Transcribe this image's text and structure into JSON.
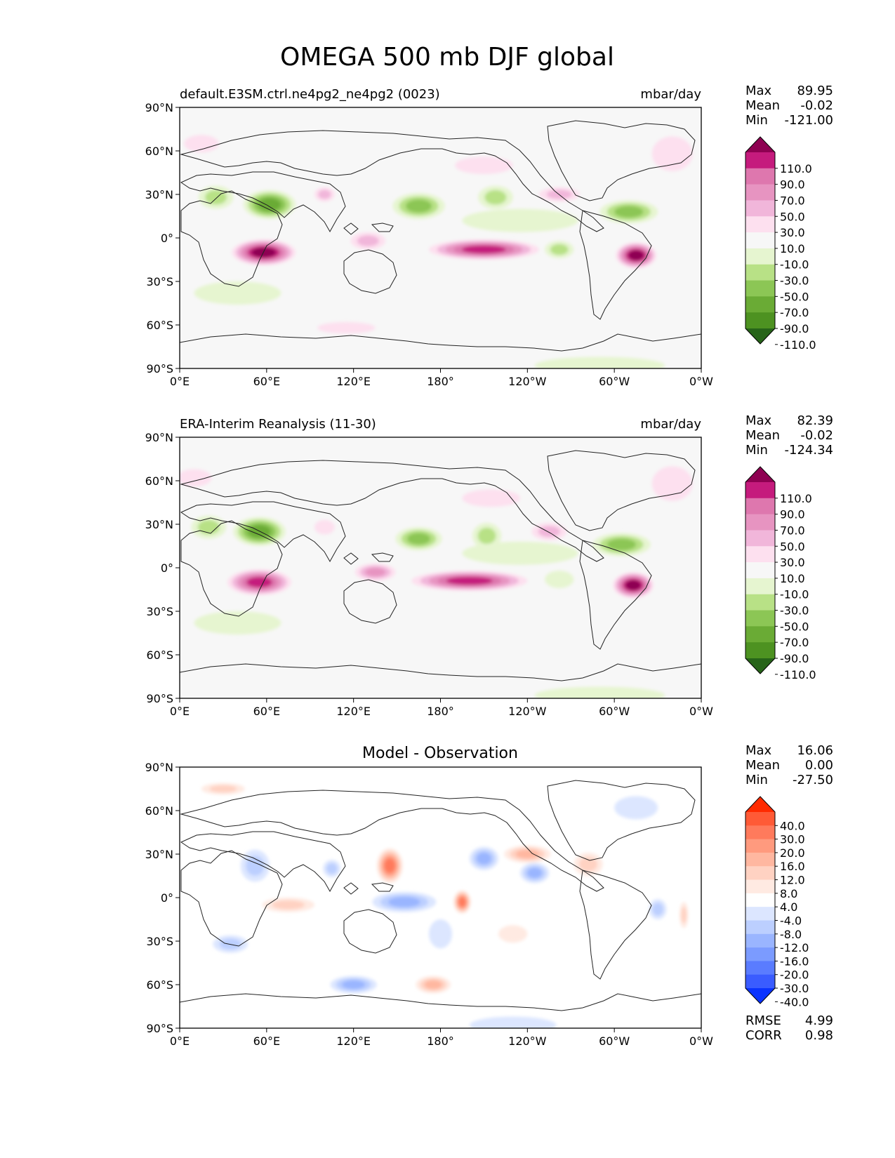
{
  "title": "OMEGA 500 mb DJF global",
  "lon_ticks": [
    "0°E",
    "60°E",
    "120°E",
    "180°",
    "120°W",
    "60°W",
    "0°W"
  ],
  "lat_ticks": [
    "90°N",
    "60°N",
    "30°N",
    "0°",
    "30°S",
    "60°S",
    "90°S"
  ],
  "stat_labels": {
    "max": "Max",
    "mean": "Mean",
    "min": "Min",
    "rmse": "RMSE",
    "corr": "CORR"
  },
  "colors": {
    "ocean_main": "#f7f7f7",
    "ocean_diff": "#ffffff",
    "coast": "#222222"
  },
  "panels": [
    {
      "left_title": "default.E3SM.ctrl.ne4pg2_ne4pg2 (0023)",
      "center_title": "",
      "units": "mbar/day",
      "stats": {
        "max": "89.95",
        "mean": "-0.02",
        "min": "-121.00"
      },
      "colorbar": {
        "labels": [
          "110.0",
          "90.0",
          "70.0",
          "50.0",
          "30.0",
          "10.0",
          "-10.0",
          "-30.0",
          "-50.0",
          "-70.0",
          "-90.0",
          "-110.0"
        ],
        "colors": [
          "#8e0152",
          "#c51b7d",
          "#de77ae",
          "#e794c1",
          "#f1b6da",
          "#fde0ef",
          "#f7f7f7",
          "#e6f5d0",
          "#b8e186",
          "#8cc655",
          "#6aab35",
          "#4d9221",
          "#276419"
        ]
      }
    },
    {
      "left_title": "ERA-Interim Reanalysis (11-30)",
      "center_title": "",
      "units": "mbar/day",
      "stats": {
        "max": "82.39",
        "mean": "-0.02",
        "min": "-124.34"
      },
      "colorbar": {
        "labels": [
          "110.0",
          "90.0",
          "70.0",
          "50.0",
          "30.0",
          "10.0",
          "-10.0",
          "-30.0",
          "-50.0",
          "-70.0",
          "-90.0",
          "-110.0"
        ],
        "colors": [
          "#8e0152",
          "#c51b7d",
          "#de77ae",
          "#e794c1",
          "#f1b6da",
          "#fde0ef",
          "#f7f7f7",
          "#e6f5d0",
          "#b8e186",
          "#8cc655",
          "#6aab35",
          "#4d9221",
          "#276419"
        ]
      }
    },
    {
      "left_title": "",
      "center_title": "Model - Observation",
      "units": "",
      "stats": {
        "max": "16.06",
        "mean": "0.00",
        "min": "-27.50",
        "rmse": "4.99",
        "corr": "0.98"
      },
      "colorbar": {
        "labels": [
          "40.0",
          "30.0",
          "20.0",
          "16.0",
          "12.0",
          "8.0",
          "4.0",
          "-4.0",
          "-8.0",
          "-12.0",
          "-16.0",
          "-20.0",
          "-30.0",
          "-40.0"
        ],
        "colors": [
          "#ff2a00",
          "#ff5a36",
          "#ff7a5c",
          "#ff9a7e",
          "#ffb7a0",
          "#ffd2c2",
          "#ffeae2",
          "#ffffff",
          "#dce6ff",
          "#bccfff",
          "#9ab5ff",
          "#7b9bff",
          "#5a7cff",
          "#3a5cff",
          "#0a33ff"
        ]
      }
    }
  ],
  "chart_data": [
    {
      "type": "heatmap",
      "title": "default.E3SM.ctrl.ne4pg2_ne4pg2 (0023)",
      "units": "mbar/day",
      "xlim": [
        0,
        360
      ],
      "ylim": [
        -90,
        90
      ],
      "levels": [
        -110,
        -90,
        -70,
        -50,
        -30,
        -10,
        10,
        30,
        50,
        70,
        90,
        110
      ],
      "stats": {
        "max": 89.95,
        "mean": -0.02,
        "min": -121.0
      },
      "anomalies": [
        {
          "lon": 58,
          "lat": -10,
          "sx": 22,
          "sy": 9,
          "v": -112
        },
        {
          "lon": 210,
          "lat": -8,
          "sx": 38,
          "sy": 7,
          "v": -95
        },
        {
          "lon": 130,
          "lat": -2,
          "sx": 12,
          "sy": 6,
          "v": -45
        },
        {
          "lon": 315,
          "lat": -12,
          "sx": 14,
          "sy": 9,
          "v": -110
        },
        {
          "lon": 62,
          "lat": 23,
          "sx": 18,
          "sy": 10,
          "v": 78
        },
        {
          "lon": 25,
          "lat": 28,
          "sx": 12,
          "sy": 8,
          "v": 35
        },
        {
          "lon": 165,
          "lat": 22,
          "sx": 18,
          "sy": 9,
          "v": 60
        },
        {
          "lon": 218,
          "lat": 28,
          "sx": 12,
          "sy": 8,
          "v": 35
        },
        {
          "lon": 310,
          "lat": 18,
          "sx": 20,
          "sy": 8,
          "v": 58
        },
        {
          "lon": 262,
          "lat": -8,
          "sx": 10,
          "sy": 6,
          "v": 30
        },
        {
          "lon": 40,
          "lat": -38,
          "sx": 30,
          "sy": 8,
          "v": 18
        },
        {
          "lon": 235,
          "lat": 12,
          "sx": 40,
          "sy": 8,
          "v": 14
        },
        {
          "lon": 100,
          "lat": 30,
          "sx": 7,
          "sy": 5,
          "v": -30
        },
        {
          "lon": 262,
          "lat": 30,
          "sx": 14,
          "sy": 5,
          "v": -30
        },
        {
          "lon": 340,
          "lat": 58,
          "sx": 14,
          "sy": 12,
          "v": -22
        },
        {
          "lon": 15,
          "lat": 65,
          "sx": 12,
          "sy": 6,
          "v": -18
        },
        {
          "lon": 115,
          "lat": -62,
          "sx": 20,
          "sy": 4,
          "v": -18
        },
        {
          "lon": 210,
          "lat": 50,
          "sx": 20,
          "sy": 6,
          "v": -20
        },
        {
          "lon": 290,
          "lat": -88,
          "sx": 45,
          "sy": 6,
          "v": 18
        }
      ]
    },
    {
      "type": "heatmap",
      "title": "ERA-Interim Reanalysis (11-30)",
      "units": "mbar/day",
      "xlim": [
        0,
        360
      ],
      "ylim": [
        -90,
        90
      ],
      "levels": [
        -110,
        -90,
        -70,
        -50,
        -30,
        -10,
        10,
        30,
        50,
        70,
        90,
        110
      ],
      "stats": {
        "max": 82.39,
        "mean": -0.02,
        "min": -124.34
      },
      "anomalies": [
        {
          "lon": 55,
          "lat": -10,
          "sx": 22,
          "sy": 9,
          "v": -105
        },
        {
          "lon": 200,
          "lat": -9,
          "sx": 40,
          "sy": 7,
          "v": -90
        },
        {
          "lon": 135,
          "lat": -3,
          "sx": 14,
          "sy": 6,
          "v": -50
        },
        {
          "lon": 313,
          "lat": -12,
          "sx": 14,
          "sy": 9,
          "v": -115
        },
        {
          "lon": 55,
          "lat": 25,
          "sx": 18,
          "sy": 10,
          "v": 72
        },
        {
          "lon": 20,
          "lat": 28,
          "sx": 12,
          "sy": 8,
          "v": 30
        },
        {
          "lon": 165,
          "lat": 20,
          "sx": 16,
          "sy": 8,
          "v": 55
        },
        {
          "lon": 212,
          "lat": 22,
          "sx": 10,
          "sy": 9,
          "v": 40
        },
        {
          "lon": 305,
          "lat": 16,
          "sx": 20,
          "sy": 8,
          "v": 52
        },
        {
          "lon": 262,
          "lat": -8,
          "sx": 10,
          "sy": 6,
          "v": 28
        },
        {
          "lon": 40,
          "lat": -38,
          "sx": 30,
          "sy": 8,
          "v": 16
        },
        {
          "lon": 235,
          "lat": 10,
          "sx": 40,
          "sy": 8,
          "v": 14
        },
        {
          "lon": 100,
          "lat": 28,
          "sx": 7,
          "sy": 5,
          "v": -28
        },
        {
          "lon": 255,
          "lat": 25,
          "sx": 12,
          "sy": 6,
          "v": -30
        },
        {
          "lon": 340,
          "lat": 58,
          "sx": 14,
          "sy": 12,
          "v": -25
        },
        {
          "lon": 10,
          "lat": 62,
          "sx": 12,
          "sy": 6,
          "v": -20
        },
        {
          "lon": 215,
          "lat": 48,
          "sx": 20,
          "sy": 6,
          "v": -22
        },
        {
          "lon": 290,
          "lat": -88,
          "sx": 45,
          "sy": 6,
          "v": 16
        }
      ]
    },
    {
      "type": "heatmap",
      "title": "Model - Observation",
      "units": "",
      "xlim": [
        0,
        360
      ],
      "ylim": [
        -90,
        90
      ],
      "levels": [
        -40,
        -30,
        -20,
        -16,
        -12,
        -8,
        -4,
        4,
        8,
        12,
        16,
        20,
        30,
        40
      ],
      "stats": {
        "max": 16.06,
        "mean": 0.0,
        "min": -27.5,
        "rmse": 4.99,
        "corr": 0.98
      },
      "anomalies": [
        {
          "lon": 195,
          "lat": -3,
          "sx": 6,
          "sy": 8,
          "v": -27
        },
        {
          "lon": 145,
          "lat": 22,
          "sx": 9,
          "sy": 12,
          "v": -20
        },
        {
          "lon": 155,
          "lat": -3,
          "sx": 22,
          "sy": 7,
          "v": 15
        },
        {
          "lon": 175,
          "lat": -60,
          "sx": 12,
          "sy": 6,
          "v": -12
        },
        {
          "lon": 120,
          "lat": -60,
          "sx": 16,
          "sy": 6,
          "v": 14
        },
        {
          "lon": 52,
          "lat": 22,
          "sx": 10,
          "sy": 11,
          "v": 10
        },
        {
          "lon": 105,
          "lat": 20,
          "sx": 6,
          "sy": 6,
          "v": 8
        },
        {
          "lon": 35,
          "lat": -32,
          "sx": 12,
          "sy": 6,
          "v": 9
        },
        {
          "lon": 210,
          "lat": 27,
          "sx": 10,
          "sy": 8,
          "v": 12
        },
        {
          "lon": 245,
          "lat": 17,
          "sx": 10,
          "sy": 7,
          "v": 12
        },
        {
          "lon": 240,
          "lat": 30,
          "sx": 16,
          "sy": 6,
          "v": -12
        },
        {
          "lon": 282,
          "lat": 23,
          "sx": 10,
          "sy": 8,
          "v": -8
        },
        {
          "lon": 75,
          "lat": -5,
          "sx": 18,
          "sy": 5,
          "v": -8
        },
        {
          "lon": 330,
          "lat": -8,
          "sx": 6,
          "sy": 7,
          "v": 8
        },
        {
          "lon": 348,
          "lat": -12,
          "sx": 3,
          "sy": 9,
          "v": -10
        },
        {
          "lon": 30,
          "lat": 75,
          "sx": 15,
          "sy": 4,
          "v": -10
        },
        {
          "lon": 315,
          "lat": 62,
          "sx": 15,
          "sy": 8,
          "v": 6
        },
        {
          "lon": 230,
          "lat": -88,
          "sx": 30,
          "sy": 6,
          "v": 5
        },
        {
          "lon": 180,
          "lat": -25,
          "sx": 8,
          "sy": 10,
          "v": 6
        },
        {
          "lon": 230,
          "lat": -25,
          "sx": 10,
          "sy": 6,
          "v": -6
        }
      ]
    }
  ]
}
